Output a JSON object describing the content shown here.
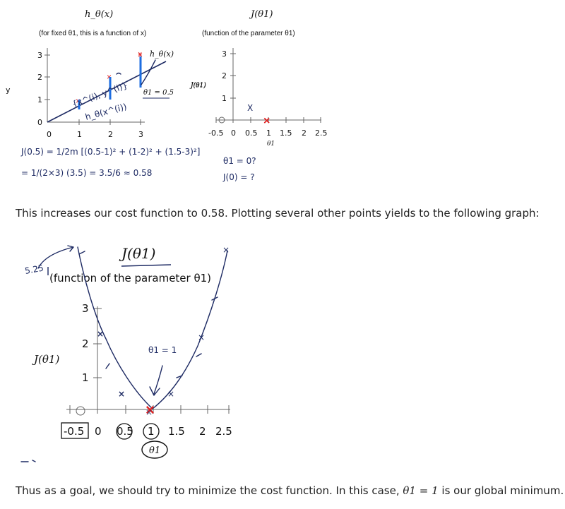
{
  "chart_data": [
    {
      "type": "scatter",
      "title": "h_θ(x)",
      "subtitle": "(for fixed θ1, this is a function of x)",
      "ylabel": "y",
      "x_ticks": [
        "0",
        "1",
        "2",
        "3"
      ],
      "y_ticks": [
        "0",
        "1",
        "2",
        "3"
      ],
      "xlim": [
        0,
        3
      ],
      "ylim": [
        0,
        3
      ],
      "points": [
        {
          "x": 1,
          "y": 1
        },
        {
          "x": 2,
          "y": 2
        },
        {
          "x": 3,
          "y": 3
        }
      ],
      "line": {
        "slope": 0.5,
        "label": "θ1 = 0.5"
      },
      "legend": "h_θ(x)"
    },
    {
      "type": "scatter",
      "title": "J(θ1)",
      "subtitle": "(function of the parameter θ1)",
      "ylabel": "J(θ1)",
      "xlabel": "θ1",
      "x_ticks": [
        "-0.5",
        "0",
        "0.5",
        "1",
        "1.5",
        "2",
        "2.5"
      ],
      "y_ticks": [
        "1",
        "2",
        "3"
      ],
      "xlim": [
        -0.5,
        2.5
      ],
      "ylim": [
        0,
        3
      ],
      "points": [
        {
          "x": 0.5,
          "y": 0.58,
          "color": "#1d2a63"
        },
        {
          "x": 1,
          "y": 0,
          "color": "#e02020"
        }
      ]
    },
    {
      "type": "line",
      "title": "J(θ1)",
      "subtitle": "(function of the parameter θ1)",
      "ylabel": "J(θ1)",
      "xlabel": "θ1",
      "x_ticks": [
        "-0.5",
        "0",
        "0.5",
        "1",
        "1.5",
        "2",
        "2.5"
      ],
      "y_ticks": [
        "1",
        "2",
        "3"
      ],
      "xlim": [
        -0.5,
        2.5
      ],
      "ylim": [
        0,
        3
      ],
      "points": [
        {
          "x": -0.5,
          "y": 5.25
        },
        {
          "x": 0,
          "y": 2.3
        },
        {
          "x": 0.5,
          "y": 0.58
        },
        {
          "x": 1,
          "y": 0
        },
        {
          "x": 1.5,
          "y": 0.58
        },
        {
          "x": 2,
          "y": 2.3
        },
        {
          "x": 2.5,
          "y": 5.25
        }
      ]
    }
  ],
  "annotations": {
    "top_left": {
      "y_hat": "{x^(i), y^(i)}",
      "h_label": "h_θ(x^(i))"
    },
    "formula": {
      "line1": "J(0.5) = 1/2m [(0.5-1)² + (1-2)² + (1.5-3)²]",
      "line2": "= 1/(2×3) (3.5) = 3.5/6 ≈ 0.58"
    },
    "question": {
      "line1": "θ1 = 0?",
      "line2": "J(0) = ?"
    },
    "bottom": {
      "top_value": "5.25",
      "theta_eq": "θ1 = 1"
    },
    "texts": {
      "x_mark": "X"
    }
  },
  "paragraphs": {
    "p1": "This increases our cost function to 0.58. Plotting several other points yields to the following graph:",
    "p2_prefix": "Thus as a goal, we should try to minimize the cost function. In this case,",
    "p2_math": "θ1 = 1",
    "p2_suffix": "is our global minimum."
  }
}
